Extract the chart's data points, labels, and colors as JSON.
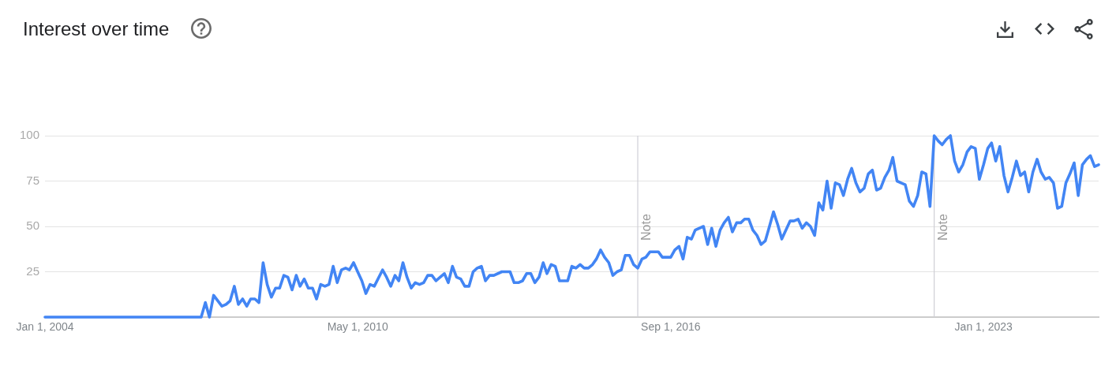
{
  "chart_data": {
    "type": "line",
    "title": "Interest over time",
    "x": [
      "2004-01",
      "2007-03",
      "2007-04",
      "2007-05",
      "2007-06",
      "2007-08",
      "2007-09",
      "2007-10",
      "2007-11",
      "2007-12",
      "2008-01",
      "2008-02",
      "2008-03",
      "2008-04",
      "2008-05",
      "2008-06",
      "2008-07",
      "2008-08",
      "2008-09",
      "2008-10",
      "2008-11",
      "2008-12",
      "2009-01",
      "2009-02",
      "2009-03",
      "2009-04",
      "2009-05",
      "2009-06",
      "2009-07",
      "2009-08",
      "2009-09",
      "2009-10",
      "2009-11",
      "2009-12",
      "2010-01",
      "2010-02",
      "2010-03",
      "2010-04",
      "2010-05",
      "2010-06",
      "2010-07",
      "2010-08",
      "2010-09",
      "2010-11",
      "2010-12",
      "2011-01",
      "2011-02",
      "2011-03",
      "2011-04",
      "2011-05",
      "2011-06",
      "2011-07",
      "2011-08",
      "2011-09",
      "2011-10",
      "2011-11",
      "2011-12",
      "2012-01",
      "2012-02",
      "2012-03",
      "2012-04",
      "2012-05",
      "2012-06",
      "2012-07",
      "2012-08",
      "2012-09",
      "2012-10",
      "2012-11",
      "2012-12",
      "2013-01",
      "2013-02",
      "2013-04",
      "2013-06",
      "2013-07",
      "2013-08",
      "2013-09",
      "2013-10",
      "2013-11",
      "2013-12",
      "2014-01",
      "2014-02",
      "2014-03",
      "2014-04",
      "2014-05",
      "2014-06",
      "2014-08",
      "2014-09",
      "2014-10",
      "2014-11",
      "2014-12",
      "2015-01",
      "2015-02",
      "2015-03",
      "2015-04",
      "2015-05",
      "2015-06",
      "2015-07",
      "2015-08",
      "2015-09",
      "2015-10",
      "2015-11",
      "2015-12",
      "2016-01",
      "2016-02",
      "2016-03",
      "2016-04",
      "2016-06",
      "2016-07",
      "2016-09",
      "2016-10",
      "2016-11",
      "2016-12",
      "2017-01",
      "2017-02",
      "2017-03",
      "2017-05",
      "2017-06",
      "2017-07",
      "2017-08",
      "2017-09",
      "2017-10",
      "2017-11",
      "2017-12",
      "2018-01",
      "2018-02",
      "2018-03",
      "2018-04",
      "2018-05",
      "2018-06",
      "2018-07",
      "2018-08",
      "2018-09",
      "2018-10",
      "2018-11",
      "2018-12",
      "2019-01",
      "2019-02",
      "2019-03",
      "2019-04",
      "2019-05",
      "2019-06",
      "2019-07",
      "2019-08",
      "2019-09",
      "2019-10",
      "2019-11",
      "2019-12",
      "2020-01",
      "2020-02",
      "2020-03",
      "2020-04",
      "2020-05",
      "2020-06",
      "2020-07",
      "2020-08",
      "2020-09",
      "2020-10",
      "2020-11",
      "2020-12",
      "2021-01",
      "2021-02",
      "2021-03",
      "2021-04",
      "2021-05",
      "2021-06",
      "2021-07",
      "2021-08",
      "2021-09",
      "2021-10",
      "2021-11",
      "2021-12",
      "2022-01",
      "2022-02",
      "2022-03",
      "2022-04",
      "2022-05",
      "2022-06",
      "2022-07",
      "2022-08",
      "2022-09",
      "2022-10",
      "2022-11",
      "2022-12",
      "2023-01",
      "2023-02",
      "2023-03",
      "2023-04",
      "2023-05",
      "2023-06",
      "2023-07",
      "2023-08",
      "2023-09",
      "2023-10",
      "2023-11",
      "2023-12",
      "2024-01",
      "2024-02",
      "2024-03",
      "2024-04",
      "2024-05",
      "2024-06",
      "2024-07",
      "2024-08",
      "2024-09",
      "2024-10",
      "2024-11",
      "2024-12",
      "2025-01",
      "2025-02",
      "2025-03",
      "2025-04",
      "2025-05"
    ],
    "values": [
      0,
      0,
      8,
      0,
      12,
      6,
      7,
      9,
      17,
      7,
      10,
      6,
      10,
      10,
      8,
      30,
      18,
      11,
      16,
      16,
      23,
      22,
      15,
      23,
      17,
      21,
      16,
      16,
      10,
      18,
      17,
      18,
      28,
      19,
      26,
      27,
      26,
      30,
      25,
      20,
      13,
      18,
      17,
      26,
      22,
      17,
      23,
      20,
      30,
      22,
      16,
      19,
      18,
      19,
      23,
      23,
      20,
      22,
      24,
      19,
      28,
      22,
      21,
      17,
      17,
      25,
      27,
      28,
      20,
      23,
      23,
      25,
      25,
      19,
      19,
      20,
      24,
      24,
      19,
      22,
      30,
      24,
      29,
      28,
      20,
      20,
      28,
      27,
      29,
      27,
      27,
      29,
      32,
      37,
      33,
      30,
      23,
      25,
      26,
      34,
      34,
      29,
      27,
      32,
      33,
      36,
      36,
      33,
      33,
      37,
      39,
      32,
      44,
      43,
      48,
      50,
      40,
      49,
      39,
      48,
      52,
      55,
      47,
      52,
      52,
      54,
      54,
      48,
      45,
      40,
      42,
      50,
      58,
      51,
      43,
      48,
      53,
      53,
      54,
      49,
      52,
      50,
      45,
      63,
      59,
      75,
      60,
      74,
      73,
      67,
      76,
      82,
      74,
      69,
      71,
      79,
      81,
      70,
      71,
      77,
      81,
      88,
      75,
      74,
      73,
      64,
      61,
      67,
      80,
      79,
      61,
      100,
      97,
      95,
      98,
      100,
      86,
      80,
      84,
      91,
      94,
      93,
      76,
      84,
      93,
      96,
      86,
      94,
      78,
      69,
      77,
      86,
      78,
      80,
      69,
      80,
      87,
      80,
      76,
      77,
      74,
      60,
      61,
      74,
      79,
      85,
      67,
      84,
      87,
      89,
      83,
      84
    ],
    "color": "#4285f4",
    "xlim": [
      "2004-01",
      "2025-05"
    ],
    "xticks": [
      {
        "value": "2004-01-01",
        "label": "Jan 1, 2004"
      },
      {
        "value": "2010-05-01",
        "label": "May 1, 2010"
      },
      {
        "value": "2016-09-01",
        "label": "Sep 1, 2016"
      },
      {
        "value": "2023-01-01",
        "label": "Jan 1, 2023"
      }
    ],
    "ylim": [
      0,
      100
    ],
    "yticks": [
      25,
      50,
      75,
      100
    ],
    "grid": "y",
    "ref_lines": [
      {
        "axis": "x",
        "value": "2016-01-01",
        "label": "Note"
      },
      {
        "axis": "x",
        "value": "2022-01-01",
        "label": "Note"
      }
    ]
  }
}
